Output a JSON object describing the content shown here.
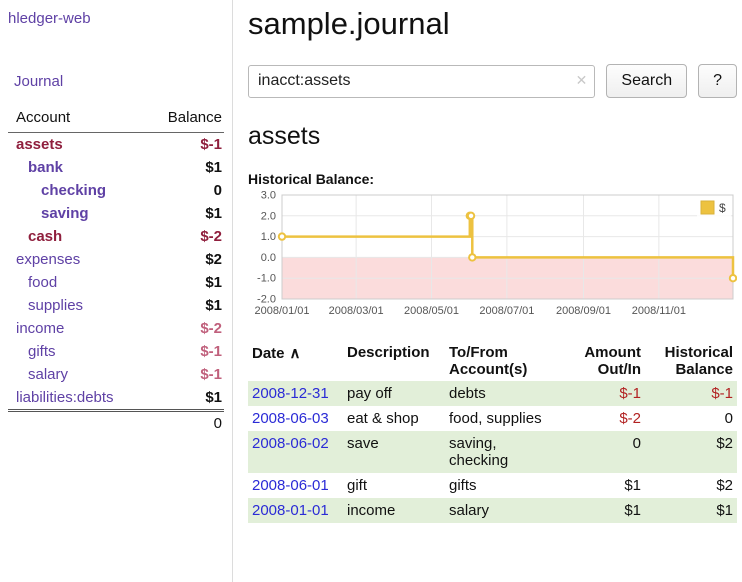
{
  "sidebar": {
    "brand": "hledger-web",
    "journal_label": "Journal",
    "accounts_header": {
      "account": "Account",
      "balance": "Balance"
    },
    "accounts": [
      {
        "name": "assets",
        "balance": "$-1"
      },
      {
        "name": "bank",
        "balance": "$1"
      },
      {
        "name": "checking",
        "balance": "0"
      },
      {
        "name": "saving",
        "balance": "$1"
      },
      {
        "name": "cash",
        "balance": "$-2"
      },
      {
        "name": "expenses",
        "balance": "$2"
      },
      {
        "name": "food",
        "balance": "$1"
      },
      {
        "name": "supplies",
        "balance": "$1"
      },
      {
        "name": "income",
        "balance": "$-2"
      },
      {
        "name": "gifts",
        "balance": "$-1"
      },
      {
        "name": "salary",
        "balance": "$-1"
      },
      {
        "name": "liabilities:debts",
        "balance": "$1"
      }
    ],
    "total": "0"
  },
  "main": {
    "title": "sample.journal",
    "search": {
      "value": "inacct:assets",
      "clear_icon": "✕",
      "button_label": "Search",
      "help_label": "?"
    },
    "account_heading": "assets"
  },
  "chart_data": {
    "type": "line",
    "style": "step",
    "title": "Historical Balance:",
    "series": [
      {
        "name": "$",
        "color": "#edc240",
        "points": [
          [
            "2008-01-01",
            1
          ],
          [
            "2008-06-01",
            2
          ],
          [
            "2008-06-02",
            2
          ],
          [
            "2008-06-03",
            0
          ],
          [
            "2008-12-31",
            -1
          ]
        ]
      }
    ],
    "x_range": [
      "2008-01-01",
      "2008-12-31"
    ],
    "y_range": [
      -2.0,
      3.0
    ],
    "y_ticks": [
      "3.0",
      "2.0",
      "1.0",
      "0.0",
      "-1.0",
      "-2.0"
    ],
    "x_ticks": [
      [
        "2008-01-01",
        "2008/01/01"
      ],
      [
        "2008-03-01",
        "2008/03/01"
      ],
      [
        "2008-05-01",
        "2008/05/01"
      ],
      [
        "2008-07-01",
        "2008/07/01"
      ],
      [
        "2008-09-01",
        "2008/09/01"
      ],
      [
        "2008-11-01",
        "2008/11/01"
      ]
    ],
    "legend": {
      "position": "top-right",
      "entries": [
        {
          "label": "$",
          "color": "#edc240"
        }
      ]
    },
    "grid": true,
    "below_zero_fill": "#fbdcdc"
  },
  "register": {
    "headers": {
      "date": "Date",
      "sort_indicator": "∧",
      "description": "Description",
      "account": "To/From Account(s)",
      "amount": "Amount Out/In",
      "balance": "Historical Balance"
    },
    "rows": [
      {
        "date": "2008-12-31",
        "description": "pay off",
        "accounts": "debts",
        "amount": "$-1",
        "balance": "$-1"
      },
      {
        "date": "2008-06-03",
        "description": "eat & shop",
        "accounts": "food, supplies",
        "amount": "$-2",
        "balance": "0"
      },
      {
        "date": "2008-06-02",
        "description": "save",
        "accounts": "saving, checking",
        "amount": "0",
        "balance": "$2"
      },
      {
        "date": "2008-06-01",
        "description": "gift",
        "accounts": "gifts",
        "amount": "$1",
        "balance": "$2"
      },
      {
        "date": "2008-01-01",
        "description": "income",
        "accounts": "salary",
        "amount": "$1",
        "balance": "$1"
      }
    ]
  }
}
